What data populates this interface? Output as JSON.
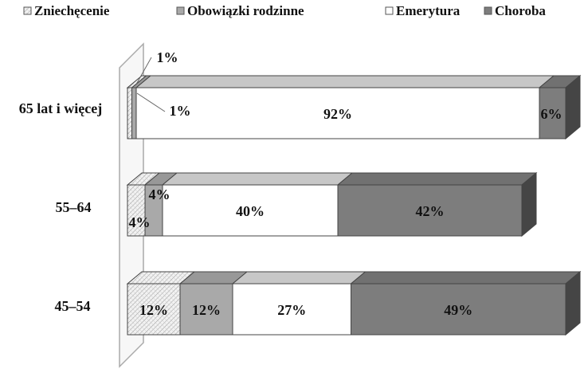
{
  "chart_data": {
    "type": "bar",
    "stacked": true,
    "orientation": "horizontal",
    "style": "3d",
    "categories": [
      "65 lat i więcej",
      "55–64",
      "45–54"
    ],
    "series": [
      {
        "name": "Zniechęcenie",
        "values": [
          1,
          4,
          12
        ],
        "labels": [
          "1%",
          "4%",
          "12%"
        ],
        "color": "#ececec",
        "pattern": "crosshatch"
      },
      {
        "name": "Obowiązki rodzinne",
        "values": [
          1,
          4,
          12
        ],
        "labels": [
          "1%",
          "4%",
          "12%"
        ],
        "color": "#a9a9a9"
      },
      {
        "name": "Emerytura",
        "values": [
          92,
          40,
          27
        ],
        "labels": [
          "92%",
          "40%",
          "27%"
        ],
        "color": "#ffffff"
      },
      {
        "name": "Choroba",
        "values": [
          6,
          42,
          49
        ],
        "labels": [
          "6%",
          "42%",
          "49%"
        ],
        "color": "#7d7d7d"
      }
    ],
    "xlim": [
      0,
      100
    ],
    "grid": false,
    "legend": "top"
  }
}
